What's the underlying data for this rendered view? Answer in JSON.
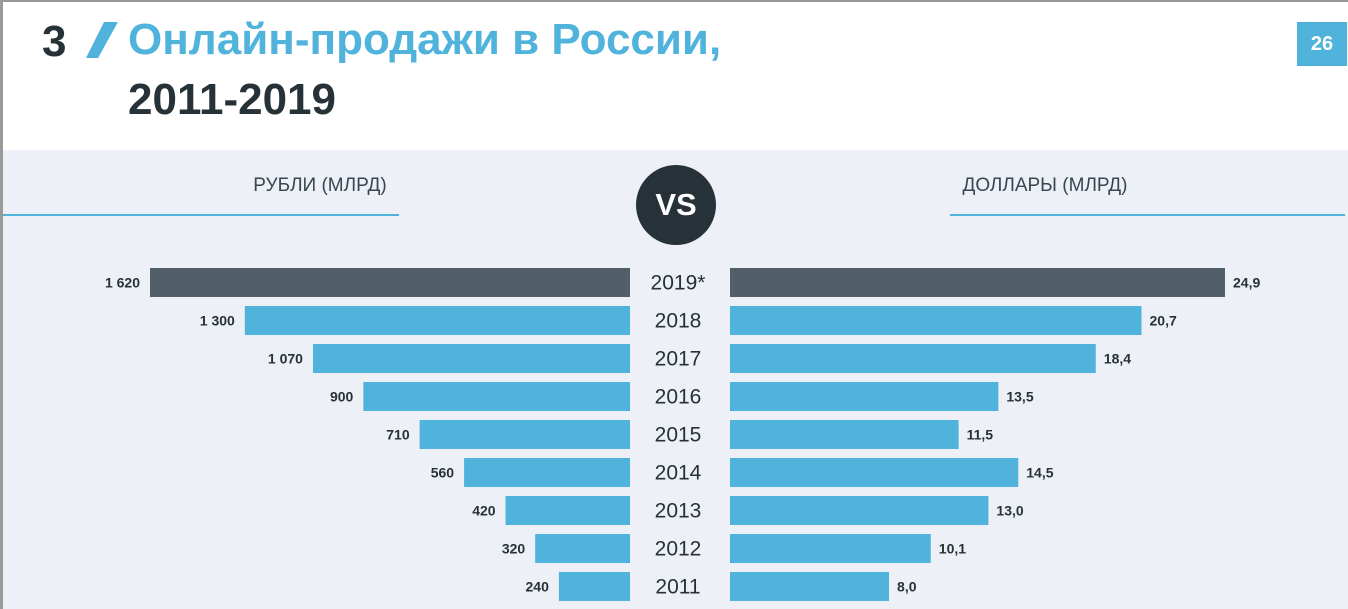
{
  "header": {
    "section_number": "3",
    "title_line1": "Онлайн-продажи в России,",
    "title_line2": "2011-2019",
    "page_number": "26"
  },
  "colors": {
    "accent": "#4fb3dc",
    "highlight": "#525f69",
    "dark": "#263238",
    "panel": "#edf0f6"
  },
  "left_header": "РУБЛИ (МЛРД)",
  "right_header": "ДОЛЛАРЫ (МЛРД)",
  "vs_label": "VS",
  "chart_data": {
    "type": "bar",
    "orientation": "horizontal-butterfly",
    "categories": [
      "2019*",
      "2018",
      "2017",
      "2016",
      "2015",
      "2014",
      "2013",
      "2012",
      "2011"
    ],
    "series": [
      {
        "name": "РУБЛИ (МЛРД)",
        "values": [
          1620,
          1300,
          1070,
          900,
          710,
          560,
          420,
          320,
          240
        ],
        "labels": [
          "1 620",
          "1 300",
          "1 070",
          "900",
          "710",
          "560",
          "420",
          "320",
          "240"
        ]
      },
      {
        "name": "ДОЛЛАРЫ (МЛРД)",
        "values": [
          24.9,
          20.7,
          18.4,
          13.5,
          11.5,
          14.5,
          13.0,
          10.1,
          8.0
        ],
        "labels": [
          "24,9",
          "20,7",
          "18,4",
          "13,5",
          "11,5",
          "14,5",
          "13,0",
          "10,1",
          "8,0"
        ]
      }
    ],
    "highlight_category": "2019*",
    "grid": false
  }
}
